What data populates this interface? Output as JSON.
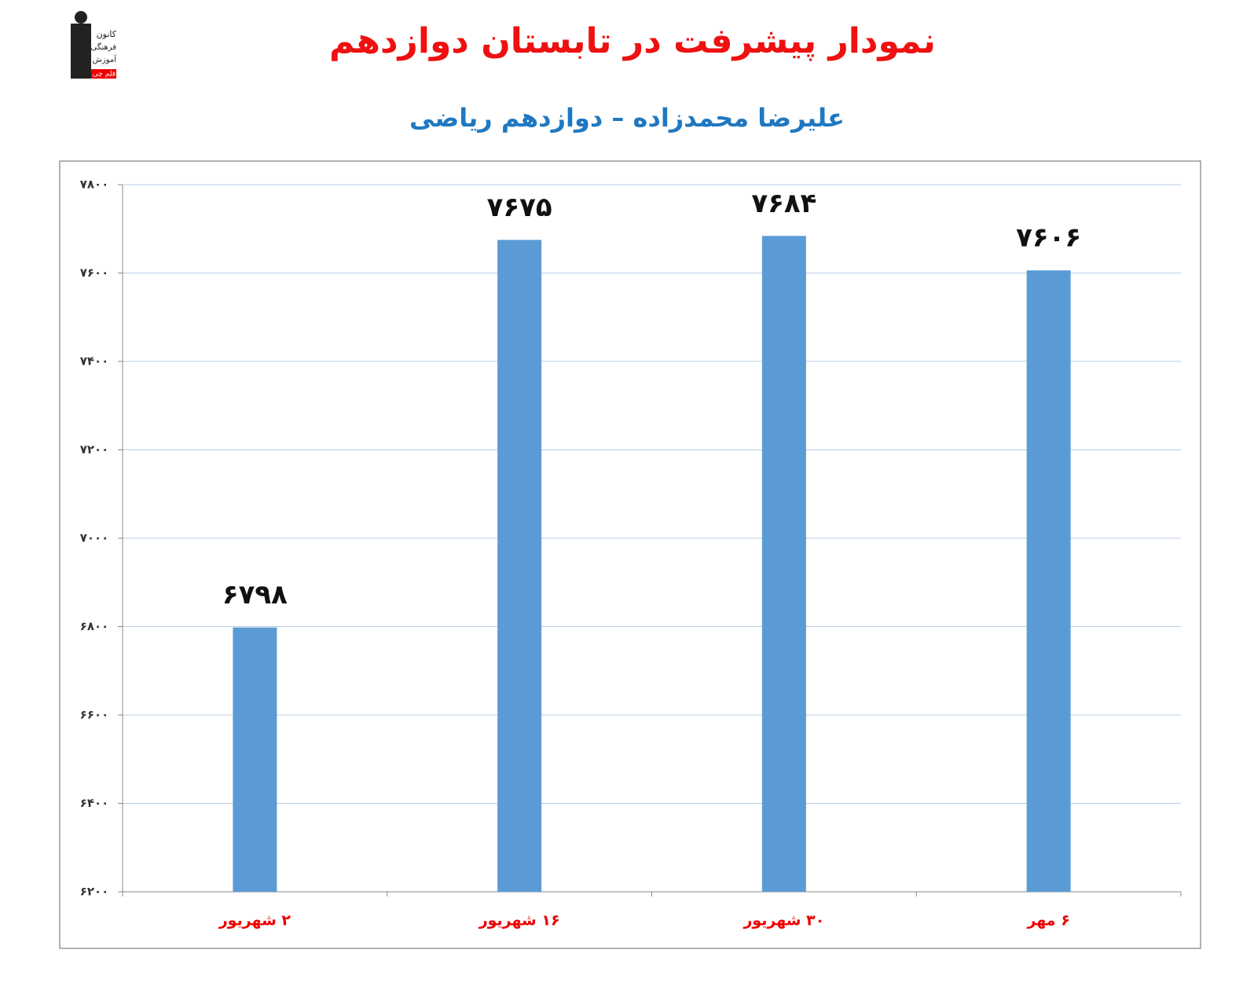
{
  "logo": [
    "کانون",
    "فرهنگی",
    "آموزش",
    "قلم چی"
  ],
  "chart_data": {
    "type": "bar",
    "title": "نمودار پیشرفت در تابستان دوازدهم",
    "subtitle": "علیرضا محمدزاده – دوازدهم ریاضی",
    "categories": [
      "۲ شهریور",
      "۱۶ شهریور",
      "۳۰ شهریور",
      "۶ مهر"
    ],
    "values": [
      6798,
      7675,
      7684,
      7606
    ],
    "value_labels": [
      "۶۷۹۸",
      "۷۶۷۵",
      "۷۶۸۴",
      "۷۶۰۶"
    ],
    "color": "#5b9bd5",
    "ylim": [
      6200,
      7800
    ],
    "yticks": [
      {
        "value": 6200,
        "label": "۶۲۰۰"
      },
      {
        "value": 6400,
        "label": "۶۴۰۰"
      },
      {
        "value": 6600,
        "label": "۶۶۰۰"
      },
      {
        "value": 6800,
        "label": "۶۸۰۰"
      },
      {
        "value": 7000,
        "label": "۷۰۰۰"
      },
      {
        "value": 7200,
        "label": "۷۲۰۰"
      },
      {
        "value": 7400,
        "label": "۷۴۰۰"
      },
      {
        "value": 7600,
        "label": "۷۶۰۰"
      },
      {
        "value": 7800,
        "label": "۷۸۰۰"
      }
    ],
    "grid": true
  }
}
